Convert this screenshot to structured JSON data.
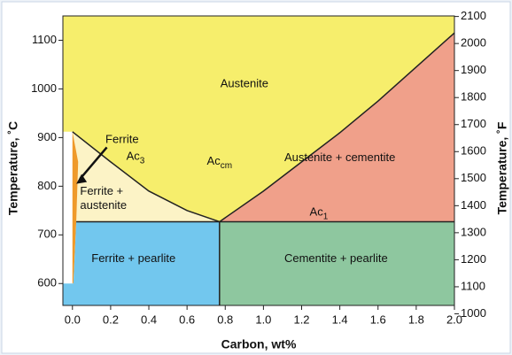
{
  "chart_data": {
    "type": "phase",
    "xlabel": "Carbon, wt%",
    "ylabel": "Temperature, ˚C",
    "y2label": "Temperature, ˚F",
    "xlim": [
      -0.05,
      2.0
    ],
    "ylim": [
      555,
      1150
    ],
    "y2lim": [
      1031,
      2102
    ],
    "xticks": [
      {
        "value": 0,
        "label": "0.0"
      },
      0.2,
      0.4,
      0.6,
      0.8,
      {
        "value": 1,
        "label": "1.0"
      },
      1.2,
      1.4,
      1.6,
      1.8,
      {
        "value": 2,
        "label": "2.0"
      }
    ],
    "yticks": [
      600,
      700,
      800,
      900,
      1000,
      1100
    ],
    "y2ticks": [
      1000,
      1100,
      1200,
      1300,
      1400,
      1500,
      1600,
      1700,
      1800,
      1900,
      2000,
      2100
    ],
    "regions": [
      {
        "name": "Austenite",
        "color": "#f6ee6c",
        "x": [
          -0.05,
          2.0,
          2.0,
          1.8,
          1.6,
          1.4,
          1.2,
          1.0,
          0.77,
          0.6,
          0.4,
          0.2,
          0,
          -0.05
        ],
        "y": [
          1150,
          1150,
          1115,
          1045,
          975,
          910,
          850,
          790,
          727,
          750,
          790,
          850,
          912,
          912
        ]
      },
      {
        "name": "Ferrite + austenite",
        "color": "#fcf3c6",
        "x": [
          0,
          0.2,
          0.4,
          0.6,
          0.77,
          0.02,
          0.03
        ],
        "y": [
          912,
          850,
          790,
          750,
          727,
          727,
          850
        ]
      },
      {
        "name": "Ferrite",
        "color": "#ef9a2a",
        "x": [
          0,
          0.03,
          0.02,
          0.005,
          0
        ],
        "y": [
          912,
          850,
          727,
          600,
          600
        ]
      },
      {
        "name": "Austenite + cementite",
        "color": "#f0a08a",
        "x": [
          0.77,
          1.0,
          1.2,
          1.4,
          1.6,
          1.8,
          2.0,
          2.0
        ],
        "y": [
          727,
          790,
          850,
          910,
          975,
          1045,
          1115,
          727
        ]
      },
      {
        "name": "Ferrite + pearlite",
        "color": "#72c7ee",
        "x": [
          0.02,
          0.77,
          0.77,
          -0.05,
          -0.05,
          0.005
        ],
        "y": [
          727,
          727,
          555,
          555,
          600,
          600
        ]
      },
      {
        "name": "Cementite + pearlite",
        "color": "#8ec79f",
        "x": [
          0.77,
          2.0,
          2.0,
          0.77
        ],
        "y": [
          727,
          727,
          555,
          555
        ]
      }
    ],
    "lines": [
      {
        "name": "Ac3",
        "x": [
          0,
          0.2,
          0.4,
          0.6,
          0.77
        ],
        "y": [
          912,
          850,
          790,
          750,
          727
        ]
      },
      {
        "name": "Acm",
        "x": [
          0.77,
          1.0,
          1.2,
          1.4,
          1.6,
          1.8,
          2.0
        ],
        "y": [
          727,
          790,
          850,
          910,
          975,
          1045,
          1115
        ]
      },
      {
        "name": "Ac1",
        "x": [
          0.02,
          2.0
        ],
        "y": [
          727,
          727
        ]
      },
      {
        "name": "Ac1",
        "x": [
          0.77,
          0.77
        ],
        "y": [
          727,
          555
        ]
      }
    ],
    "annotations": [
      {
        "text": "Ac",
        "sub": "3"
      },
      {
        "text": "Ac",
        "sub": "cm"
      },
      {
        "text": "Ac",
        "sub": "1"
      }
    ]
  }
}
